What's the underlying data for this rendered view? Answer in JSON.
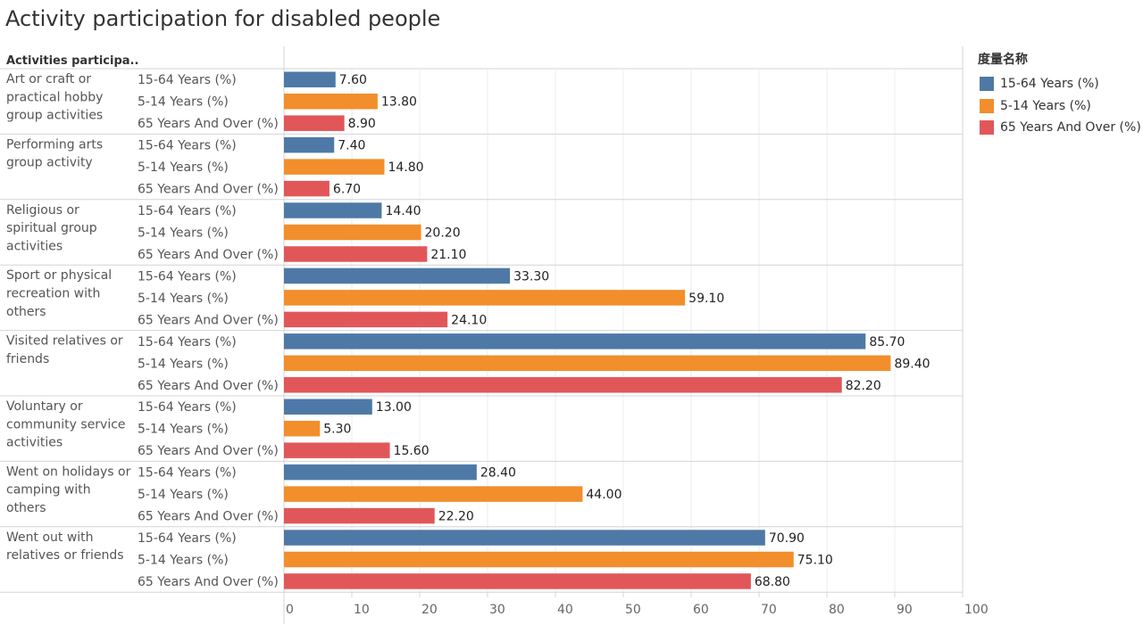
{
  "title": "Activity participation for disabled people",
  "row_header": "Activities participa..",
  "legend": {
    "title": "度量名称",
    "items": [
      {
        "label": "15-64 Years (%)",
        "color": "#4e79a7"
      },
      {
        "label": "5-14 Years (%)",
        "color": "#f28e2b"
      },
      {
        "label": "65 Years And Over (%)",
        "color": "#e15759"
      }
    ]
  },
  "chart_data": {
    "type": "bar",
    "orientation": "horizontal",
    "categories": [
      [
        "Art or craft or",
        "practical hobby",
        "group activities"
      ],
      [
        "Performing arts",
        "group activity"
      ],
      [
        "Religious or",
        "spiritual group",
        "activities"
      ],
      [
        "Sport or physical",
        "recreation with",
        "others"
      ],
      [
        "Visited relatives or",
        "friends"
      ],
      [
        "Voluntary or",
        "community service",
        "activities"
      ],
      [
        "Went on holidays or",
        "camping with",
        "others"
      ],
      [
        "Went out with",
        "relatives or friends"
      ]
    ],
    "series": [
      {
        "name": "15-64 Years (%)",
        "color": "#4e79a7",
        "values": [
          7.6,
          7.4,
          14.4,
          33.3,
          85.7,
          13.0,
          28.4,
          70.9
        ]
      },
      {
        "name": "5-14 Years (%)",
        "color": "#f28e2b",
        "values": [
          13.8,
          14.8,
          20.2,
          59.1,
          89.4,
          5.3,
          44.0,
          75.1
        ]
      },
      {
        "name": "65 Years And Over (%)",
        "color": "#e15759",
        "values": [
          8.9,
          6.7,
          21.1,
          24.1,
          82.2,
          15.6,
          22.2,
          68.8
        ]
      }
    ],
    "value_format_decimals": 2,
    "xlim": [
      0,
      100
    ],
    "xticks": [
      0,
      10,
      20,
      30,
      40,
      50,
      60,
      70,
      80,
      90,
      100
    ],
    "grid": true,
    "legend_position": "right"
  }
}
